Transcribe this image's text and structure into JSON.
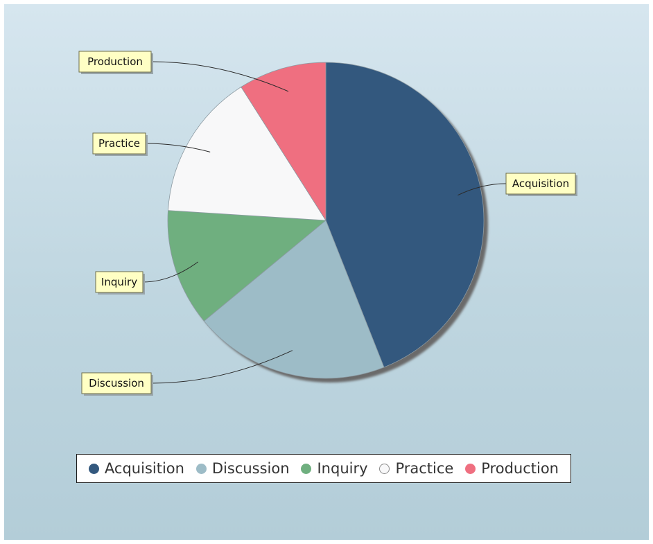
{
  "chart_data": {
    "type": "pie",
    "title": "",
    "categories": [
      "Acquisition",
      "Discussion",
      "Inquiry",
      "Practice",
      "Production"
    ],
    "values": [
      44,
      20,
      12,
      15,
      9
    ],
    "colors": [
      "#33587e",
      "#9dbcc7",
      "#6faf7f",
      "#f8f8f9",
      "#ef6f80"
    ],
    "start_angle_deg": 0,
    "direction": "clockwise",
    "labels": "callouts",
    "legend": "bottom"
  }
}
